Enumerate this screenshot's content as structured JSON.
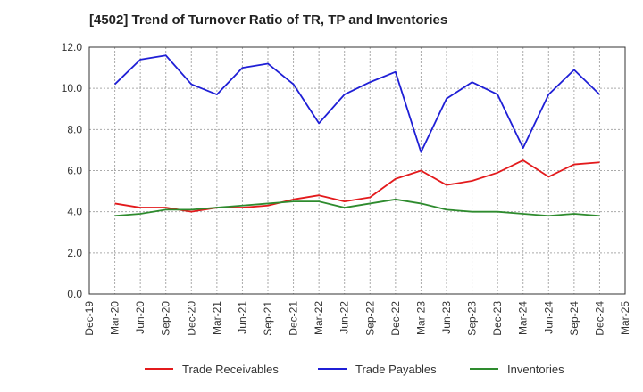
{
  "chart_data": {
    "type": "line",
    "title": "[4502]  Trend of Turnover Ratio of TR, TP and Inventories",
    "xlabel": "",
    "ylabel": "",
    "ylim": [
      0,
      12
    ],
    "yticks": [
      "0.0",
      "2.0",
      "4.0",
      "6.0",
      "8.0",
      "10.0",
      "12.0"
    ],
    "x_ticks": [
      "Dec-19",
      "Mar-20",
      "Jun-20",
      "Sep-20",
      "Dec-20",
      "Mar-21",
      "Jun-21",
      "Sep-21",
      "Dec-21",
      "Mar-22",
      "Jun-22",
      "Sep-22",
      "Dec-22",
      "Mar-23",
      "Jun-23",
      "Sep-23",
      "Dec-23",
      "Mar-24",
      "Jun-24",
      "Sep-24",
      "Dec-24",
      "Mar-25"
    ],
    "x": [
      "Mar-20",
      "Jun-20",
      "Sep-20",
      "Dec-20",
      "Mar-21",
      "Jun-21",
      "Sep-21",
      "Dec-21",
      "Mar-22",
      "Jun-22",
      "Sep-22",
      "Dec-22",
      "Mar-23",
      "Jun-23",
      "Sep-23",
      "Dec-23",
      "Mar-24",
      "Jun-24",
      "Sep-24",
      "Dec-24"
    ],
    "grid": true,
    "legend_position": "bottom",
    "series": [
      {
        "name": "Trade Receivables",
        "color": "#e31a1c",
        "values": [
          4.4,
          4.2,
          4.2,
          4.0,
          4.2,
          4.2,
          4.3,
          4.6,
          4.8,
          4.5,
          4.7,
          5.6,
          6.0,
          5.3,
          5.5,
          5.9,
          6.5,
          5.7,
          6.3,
          6.4
        ]
      },
      {
        "name": "Trade Payables",
        "color": "#1f1fd6",
        "values": [
          10.2,
          11.4,
          11.6,
          10.2,
          9.7,
          11.0,
          11.2,
          10.2,
          8.3,
          9.7,
          10.3,
          10.8,
          6.9,
          9.5,
          10.3,
          9.7,
          7.1,
          9.7,
          10.9,
          9.7
        ]
      },
      {
        "name": "Inventories",
        "color": "#2e8b2e",
        "values": [
          3.8,
          3.9,
          4.1,
          4.1,
          4.2,
          4.3,
          4.4,
          4.5,
          4.5,
          4.2,
          4.4,
          4.6,
          4.4,
          4.1,
          4.0,
          4.0,
          3.9,
          3.8,
          3.9,
          3.8
        ]
      }
    ]
  }
}
